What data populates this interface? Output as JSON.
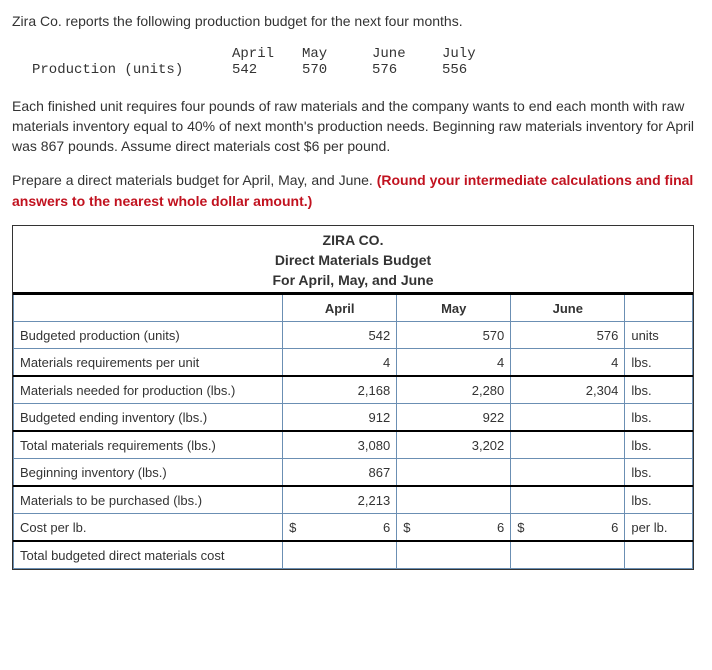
{
  "intro": "Zira Co. reports the following production budget for the next four months.",
  "prod_table": {
    "row_label": "Production (units)",
    "months": [
      "April",
      "May",
      "June",
      "July"
    ],
    "units": [
      "542",
      "570",
      "576",
      "556"
    ]
  },
  "para1": "Each finished unit requires four pounds of raw materials and the company wants to end each month with raw materials inventory equal to 40% of next month's production needs. Beginning raw materials inventory for April was 867 pounds. Assume direct materials cost $6 per pound.",
  "instr_plain": "Prepare a direct materials budget for April, May, and June. ",
  "instr_red": "(Round your intermediate calculations and final answers to the nearest whole dollar amount.)",
  "ws": {
    "company": "ZIRA CO.",
    "title": "Direct Materials Budget",
    "period": "For April, May, and June",
    "col_headers": [
      "April",
      "May",
      "June",
      ""
    ],
    "rows": [
      {
        "label": "Budgeted production (units)",
        "apr": "542",
        "may": "570",
        "jun": "576",
        "unit": "units"
      },
      {
        "label": "Materials requirements per unit",
        "apr": "4",
        "may": "4",
        "jun": "4",
        "unit": "lbs."
      },
      {
        "label": "Materials needed for production (lbs.)",
        "apr": "2,168",
        "may": "2,280",
        "jun": "2,304",
        "unit": "lbs."
      },
      {
        "label": "Budgeted ending inventory (lbs.)",
        "apr": "912",
        "may": "922",
        "jun": "",
        "unit": "lbs."
      },
      {
        "label": "Total materials requirements (lbs.)",
        "apr": "3,080",
        "may": "3,202",
        "jun": "",
        "unit": "lbs."
      },
      {
        "label": "Beginning inventory (lbs.)",
        "apr": "867",
        "may": "",
        "jun": "",
        "unit": "lbs."
      },
      {
        "label": "Materials to be purchased (lbs.)",
        "apr": "2,213",
        "may": "",
        "jun": "",
        "unit": "lbs."
      }
    ],
    "cost_row": {
      "label": "Cost per lb.",
      "cur": "$",
      "apr": "6",
      "may": "6",
      "jun": "6",
      "unit": "per lb."
    },
    "total_row": {
      "label": "Total budgeted direct materials cost",
      "apr": "",
      "may": "",
      "jun": "",
      "unit": ""
    }
  }
}
